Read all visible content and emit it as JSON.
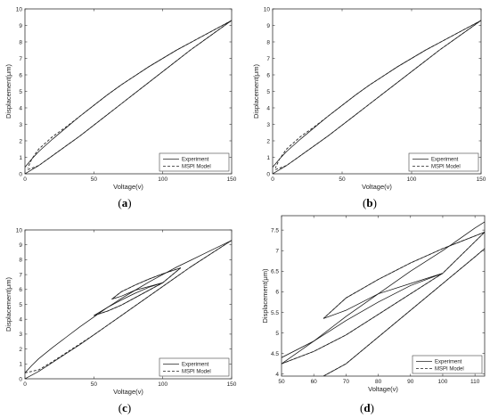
{
  "figure": {
    "captions": [
      "(a)",
      "(b)",
      "(c)",
      "(d)"
    ]
  },
  "chart_data": [
    {
      "type": "line",
      "caption": "(a)",
      "xlabel": "Voltage(v)",
      "ylabel": "Displacement(μm)",
      "xlim": [
        0,
        150
      ],
      "ylim": [
        0,
        10
      ],
      "xticks": [
        "0",
        "50",
        "100",
        "150"
      ],
      "yticks": [
        "0",
        "1",
        "2",
        "3",
        "4",
        "5",
        "6",
        "7",
        "8",
        "9",
        "10"
      ],
      "grid": false,
      "legend_position": "bottom-right",
      "series": [
        {
          "name": "Experiment",
          "style": "solid",
          "segments": [
            {
              "x": [
                0,
                10,
                20,
                30,
                40,
                50,
                60,
                70,
                80,
                90,
                100,
                110,
                120,
                130,
                140,
                150
              ],
              "y": [
                0,
                0.5,
                1.1,
                1.7,
                2.3,
                2.95,
                3.6,
                4.25,
                4.9,
                5.55,
                6.2,
                6.85,
                7.5,
                8.1,
                8.7,
                9.3
              ]
            },
            {
              "x": [
                150,
                140,
                130,
                120,
                110,
                100,
                90,
                80,
                70,
                60,
                50,
                40,
                30,
                20,
                10,
                5,
                0
              ],
              "y": [
                9.3,
                8.85,
                8.4,
                7.95,
                7.5,
                7.0,
                6.5,
                5.95,
                5.4,
                4.8,
                4.15,
                3.5,
                2.8,
                2.1,
                1.35,
                0.9,
                0.4
              ]
            }
          ]
        },
        {
          "name": "MSPI Model",
          "style": "dashed",
          "segments": [
            {
              "x": [
                2,
                10,
                20,
                30,
                40,
                50,
                60,
                70,
                80,
                90,
                100,
                110,
                120,
                130,
                140,
                150
              ],
              "y": [
                0.25,
                0.5,
                1.1,
                1.7,
                2.3,
                2.95,
                3.6,
                4.25,
                4.9,
                5.55,
                6.2,
                6.85,
                7.5,
                8.1,
                8.7,
                9.3
              ]
            },
            {
              "x": [
                150,
                140,
                130,
                120,
                110,
                100,
                90,
                80,
                70,
                60,
                50,
                40,
                30,
                20,
                10,
                5,
                2
              ],
              "y": [
                9.3,
                8.85,
                8.4,
                7.95,
                7.5,
                7.0,
                6.5,
                5.95,
                5.4,
                4.8,
                4.15,
                3.5,
                2.85,
                2.25,
                1.5,
                0.9,
                0.35
              ]
            }
          ]
        }
      ]
    },
    {
      "type": "line",
      "caption": "(b)",
      "xlabel": "Voltage(v)",
      "ylabel": "Displacement(μm)",
      "xlim": [
        0,
        150
      ],
      "ylim": [
        0,
        10
      ],
      "xticks": [
        "0",
        "50",
        "100",
        "150"
      ],
      "yticks": [
        "0",
        "1",
        "2",
        "3",
        "4",
        "5",
        "6",
        "7",
        "8",
        "9",
        "10"
      ],
      "grid": false,
      "legend_position": "bottom-right",
      "series": [
        {
          "name": "Experiment",
          "style": "solid",
          "segments": [
            {
              "x": [
                0,
                10,
                20,
                30,
                40,
                50,
                60,
                70,
                80,
                90,
                100,
                110,
                120,
                130,
                140,
                150
              ],
              "y": [
                0,
                0.5,
                1.1,
                1.7,
                2.3,
                2.95,
                3.6,
                4.25,
                4.9,
                5.55,
                6.2,
                6.85,
                7.5,
                8.1,
                8.7,
                9.3
              ]
            },
            {
              "x": [
                150,
                140,
                130,
                120,
                110,
                100,
                90,
                80,
                70,
                60,
                50,
                40,
                30,
                20,
                10,
                5,
                0
              ],
              "y": [
                9.3,
                8.85,
                8.4,
                7.95,
                7.5,
                7.0,
                6.5,
                5.95,
                5.4,
                4.8,
                4.15,
                3.5,
                2.8,
                2.1,
                1.35,
                0.9,
                0.4
              ]
            }
          ]
        },
        {
          "name": "MSPI Model",
          "style": "dashed",
          "segments": [
            {
              "x": [
                2,
                10,
                20,
                30,
                40,
                50,
                60,
                70,
                80,
                90,
                100,
                110,
                120,
                130,
                140,
                150
              ],
              "y": [
                0.25,
                0.5,
                1.1,
                1.7,
                2.3,
                2.95,
                3.6,
                4.25,
                4.9,
                5.55,
                6.2,
                6.85,
                7.5,
                8.1,
                8.7,
                9.3
              ]
            },
            {
              "x": [
                150,
                140,
                130,
                120,
                110,
                100,
                90,
                80,
                70,
                60,
                50,
                40,
                30,
                20,
                10,
                5,
                2
              ],
              "y": [
                9.3,
                8.85,
                8.4,
                7.95,
                7.5,
                7.0,
                6.5,
                5.95,
                5.4,
                4.8,
                4.15,
                3.5,
                2.85,
                2.25,
                1.5,
                0.9,
                0.35
              ]
            }
          ]
        }
      ]
    },
    {
      "type": "line",
      "caption": "(c)",
      "xlabel": "Voltage(v)",
      "ylabel": "Displacement(μm)",
      "xlim": [
        0,
        150
      ],
      "ylim": [
        0,
        10
      ],
      "xticks": [
        "0",
        "50",
        "100",
        "150"
      ],
      "yticks": [
        "0",
        "1",
        "2",
        "3",
        "4",
        "5",
        "6",
        "7",
        "8",
        "9",
        "10"
      ],
      "grid": false,
      "legend_position": "bottom-right",
      "series": [
        {
          "name": "Experiment",
          "style": "solid",
          "segments": [
            {
              "x": [
                0,
                10,
                20,
                30,
                40,
                50,
                60,
                70,
                80,
                90,
                100,
                110,
                120,
                130,
                140,
                150
              ],
              "y": [
                0,
                0.5,
                1.1,
                1.7,
                2.3,
                2.95,
                3.6,
                4.25,
                4.9,
                5.55,
                6.2,
                6.85,
                7.5,
                8.1,
                8.7,
                9.3
              ]
            },
            {
              "x": [
                150,
                140,
                130,
                120,
                110,
                100,
                90,
                80,
                70,
                60,
                50,
                40,
                30,
                20,
                10,
                5,
                0
              ],
              "y": [
                9.3,
                8.85,
                8.4,
                7.95,
                7.5,
                7.0,
                6.5,
                5.95,
                5.4,
                4.8,
                4.15,
                3.5,
                2.8,
                2.1,
                1.35,
                0.9,
                0.4
              ]
            },
            {
              "x": [
                50,
                60,
                70,
                80,
                90,
                100,
                113
              ],
              "y": [
                4.25,
                4.55,
                4.95,
                5.45,
                5.95,
                6.45,
                7.45
              ]
            },
            {
              "x": [
                113,
                100,
                90,
                80,
                70,
                63
              ],
              "y": [
                7.45,
                7.05,
                6.7,
                6.3,
                5.85,
                5.35
              ]
            },
            {
              "x": [
                63,
                70,
                80,
                90,
                100
              ],
              "y": [
                5.35,
                5.55,
                5.95,
                6.2,
                6.45
              ]
            },
            {
              "x": [
                100,
                90,
                80,
                70,
                60,
                50
              ],
              "y": [
                6.45,
                6.15,
                5.75,
                5.3,
                4.8,
                4.25
              ]
            }
          ]
        },
        {
          "name": "MSPI Model",
          "style": "dashed",
          "segments": [
            {
              "x": [
                0,
                10,
                20,
                30,
                40,
                50,
                60,
                70,
                80,
                90,
                100,
                110,
                120,
                130,
                140,
                150
              ],
              "y": [
                0.4,
                0.6,
                1.15,
                1.75,
                2.35,
                2.95,
                3.6,
                4.25,
                4.9,
                5.55,
                6.2,
                6.85,
                7.5,
                8.1,
                8.7,
                9.3
              ]
            },
            {
              "x": [
                50,
                60,
                70,
                80,
                90,
                100,
                113
              ],
              "y": [
                4.25,
                4.55,
                4.95,
                5.45,
                5.95,
                6.45,
                7.45
              ]
            },
            {
              "x": [
                113,
                100,
                90,
                80,
                70,
                63
              ],
              "y": [
                7.45,
                7.05,
                6.7,
                6.3,
                5.85,
                5.35
              ]
            }
          ]
        }
      ]
    },
    {
      "type": "line",
      "caption": "(d)",
      "xlabel": "Voltage(v)",
      "ylabel": "Displacement(μm)",
      "xlim": [
        50,
        113
      ],
      "ylim": [
        3.95,
        7.85
      ],
      "xticks": [
        "50",
        "60",
        "70",
        "80",
        "90",
        "100",
        "110"
      ],
      "yticks": [
        "4",
        "4.5",
        "5",
        "5.5",
        "6",
        "6.5",
        "7",
        "7.5"
      ],
      "grid": false,
      "legend_position": "bottom-right",
      "series": [
        {
          "name": "Experiment",
          "style": "solid",
          "segments": [
            {
              "x": [
                63,
                70,
                80,
                90,
                100,
                110,
                113
              ],
              "y": [
                3.95,
                4.25,
                4.9,
                5.55,
                6.2,
                6.85,
                7.05
              ]
            },
            {
              "x": [
                50,
                60,
                70,
                80,
                90,
                100,
                110,
                113
              ],
              "y": [
                4.4,
                4.8,
                5.4,
                5.95,
                6.5,
                7.0,
                7.55,
                7.7
              ]
            },
            {
              "x": [
                50,
                60,
                70,
                80,
                90,
                100,
                113
              ],
              "y": [
                4.25,
                4.55,
                4.95,
                5.45,
                5.95,
                6.45,
                7.45
              ]
            },
            {
              "x": [
                113,
                100,
                90,
                80,
                70,
                63
              ],
              "y": [
                7.45,
                7.05,
                6.7,
                6.3,
                5.85,
                5.35
              ]
            },
            {
              "x": [
                63,
                70,
                80,
                90,
                100
              ],
              "y": [
                5.35,
                5.55,
                5.95,
                6.2,
                6.45
              ]
            },
            {
              "x": [
                100,
                90,
                80,
                70,
                60,
                50
              ],
              "y": [
                6.45,
                6.15,
                5.75,
                5.3,
                4.8,
                4.25
              ]
            }
          ]
        },
        {
          "name": "MSPI Model",
          "style": "dashed",
          "segments": [
            {
              "x": [
                63,
                70,
                80,
                90,
                100,
                110,
                113
              ],
              "y": [
                3.95,
                4.25,
                4.9,
                5.55,
                6.2,
                6.85,
                7.05
              ]
            },
            {
              "x": [
                50,
                60,
                70,
                80,
                90,
                100,
                113
              ],
              "y": [
                4.25,
                4.55,
                4.95,
                5.45,
                5.95,
                6.45,
                7.45
              ]
            },
            {
              "x": [
                113,
                100,
                90,
                80,
                70,
                63
              ],
              "y": [
                7.45,
                7.05,
                6.7,
                6.3,
                5.85,
                5.35
              ]
            }
          ]
        }
      ]
    }
  ]
}
